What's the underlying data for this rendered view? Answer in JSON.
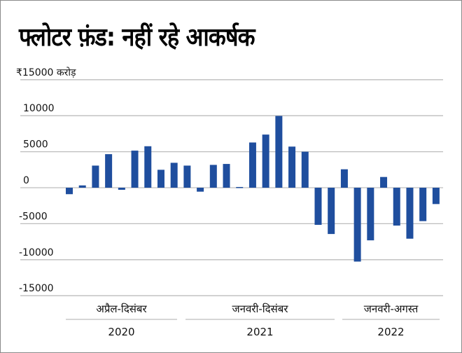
{
  "chart_data": {
    "type": "bar",
    "title": "फ्लोटर फ़ंड: नहीं रहे आकर्षक",
    "ylabel": "₹15000 करोड़",
    "ylim": [
      -15000,
      15000
    ],
    "yticks": [
      {
        "value": 15000,
        "label": "₹15000 करोड़"
      },
      {
        "value": 10000,
        "label": "10000"
      },
      {
        "value": 5000,
        "label": "5000"
      },
      {
        "value": 0,
        "label": "0"
      },
      {
        "value": -5000,
        "label": "-5000"
      },
      {
        "value": -10000,
        "label": "-10000"
      },
      {
        "value": -15000,
        "label": "-15000"
      }
    ],
    "grid": true,
    "bar_color": "#1f4e9e",
    "groups": [
      {
        "period": "अप्रैल-दिसंबर",
        "year": "2020",
        "values": [
          -900,
          320,
          3070,
          4660,
          -290,
          5150,
          5760,
          2490,
          3460
        ]
      },
      {
        "period": "जनवरी-दिसंबर",
        "year": "2021",
        "values": [
          3070,
          -550,
          3170,
          3300,
          100,
          6280,
          7380,
          9970,
          5710,
          5000,
          -5160,
          -6430
        ]
      },
      {
        "period": "जनवरी-अगस्त",
        "year": "2022",
        "values": [
          2560,
          -10260,
          -7310,
          1490,
          -5260,
          -7080,
          -4640,
          -2270
        ]
      }
    ]
  }
}
